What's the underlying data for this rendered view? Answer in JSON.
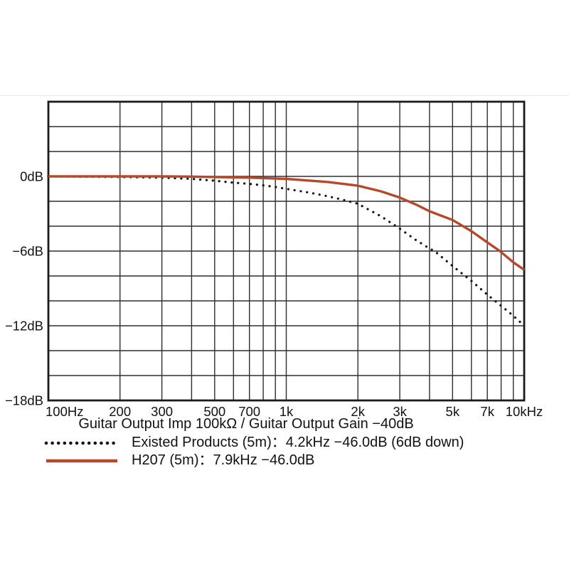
{
  "caption": "Guitar Output Imp 100kΩ / Guitar Output Gain −40dB",
  "legend": {
    "entries": [
      {
        "label": "Existed Products (5m)：4.2kHz −46.0dB (6dB down)"
      },
      {
        "label": "H207 (5m)：7.9kHz −46.0dB"
      }
    ]
  },
  "chart_data": {
    "type": "line",
    "title": "",
    "xlabel": "Guitar Output Imp 100kΩ / Guitar Output Gain −40dB",
    "ylabel": "dB",
    "grid": true,
    "legend_position": "bottom-left",
    "x_axis": {
      "scale": "log",
      "min": 100,
      "max": 10000,
      "ticks": [
        {
          "value": 100,
          "label": "100Hz"
        },
        {
          "value": 200,
          "label": "200"
        },
        {
          "value": 300,
          "label": "300"
        },
        {
          "value": 500,
          "label": "500"
        },
        {
          "value": 700,
          "label": "700"
        },
        {
          "value": 1000,
          "label": "1k"
        },
        {
          "value": 2000,
          "label": "2k"
        },
        {
          "value": 3000,
          "label": "3k"
        },
        {
          "value": 5000,
          "label": "5k"
        },
        {
          "value": 7000,
          "label": "7k"
        },
        {
          "value": 10000,
          "label": "10kHz"
        }
      ]
    },
    "y_axis": {
      "unit": "dB",
      "min": -18,
      "max": 6,
      "grid_step": 2,
      "ticks": [
        {
          "value": 0,
          "label": "0dB"
        },
        {
          "value": -6,
          "label": "−6dB"
        },
        {
          "value": -12,
          "label": "−12dB"
        },
        {
          "value": -18,
          "label": "−18dB"
        }
      ]
    },
    "series": [
      {
        "key": "existed-products",
        "label": "Existed Products (5m)：4.2kHz −46.0dB (6dB down)",
        "style": "dotted",
        "color": "#141414",
        "points": [
          [
            100,
            0
          ],
          [
            200,
            -0.05
          ],
          [
            300,
            -0.1
          ],
          [
            400,
            -0.2
          ],
          [
            500,
            -0.35
          ],
          [
            600,
            -0.5
          ],
          [
            700,
            -0.6
          ],
          [
            800,
            -0.72
          ],
          [
            900,
            -0.85
          ],
          [
            1000,
            -1.0
          ],
          [
            1250,
            -1.3
          ],
          [
            1500,
            -1.6
          ],
          [
            1750,
            -1.9
          ],
          [
            2000,
            -2.2
          ],
          [
            2500,
            -3.2
          ],
          [
            3000,
            -4.2
          ],
          [
            3500,
            -5.1
          ],
          [
            4000,
            -5.8
          ],
          [
            4200,
            -6.0
          ],
          [
            5000,
            -7.2
          ],
          [
            6000,
            -8.4
          ],
          [
            7000,
            -9.5
          ],
          [
            8000,
            -10.4
          ],
          [
            9000,
            -11.2
          ],
          [
            10000,
            -12.0
          ]
        ]
      },
      {
        "key": "h207",
        "label": "H207 (5m)：7.9kHz −46.0dB",
        "style": "solid",
        "color": "#b54a2b",
        "points": [
          [
            100,
            0
          ],
          [
            200,
            0
          ],
          [
            300,
            0
          ],
          [
            400,
            -0.02
          ],
          [
            500,
            -0.05
          ],
          [
            700,
            -0.1
          ],
          [
            1000,
            -0.2
          ],
          [
            1500,
            -0.45
          ],
          [
            2000,
            -0.75
          ],
          [
            2500,
            -1.2
          ],
          [
            3000,
            -1.7
          ],
          [
            3500,
            -2.25
          ],
          [
            4000,
            -2.8
          ],
          [
            5000,
            -3.5
          ],
          [
            6000,
            -4.4
          ],
          [
            7000,
            -5.3
          ],
          [
            7900,
            -6.0
          ],
          [
            9000,
            -6.9
          ],
          [
            10000,
            -7.5
          ]
        ]
      }
    ]
  }
}
